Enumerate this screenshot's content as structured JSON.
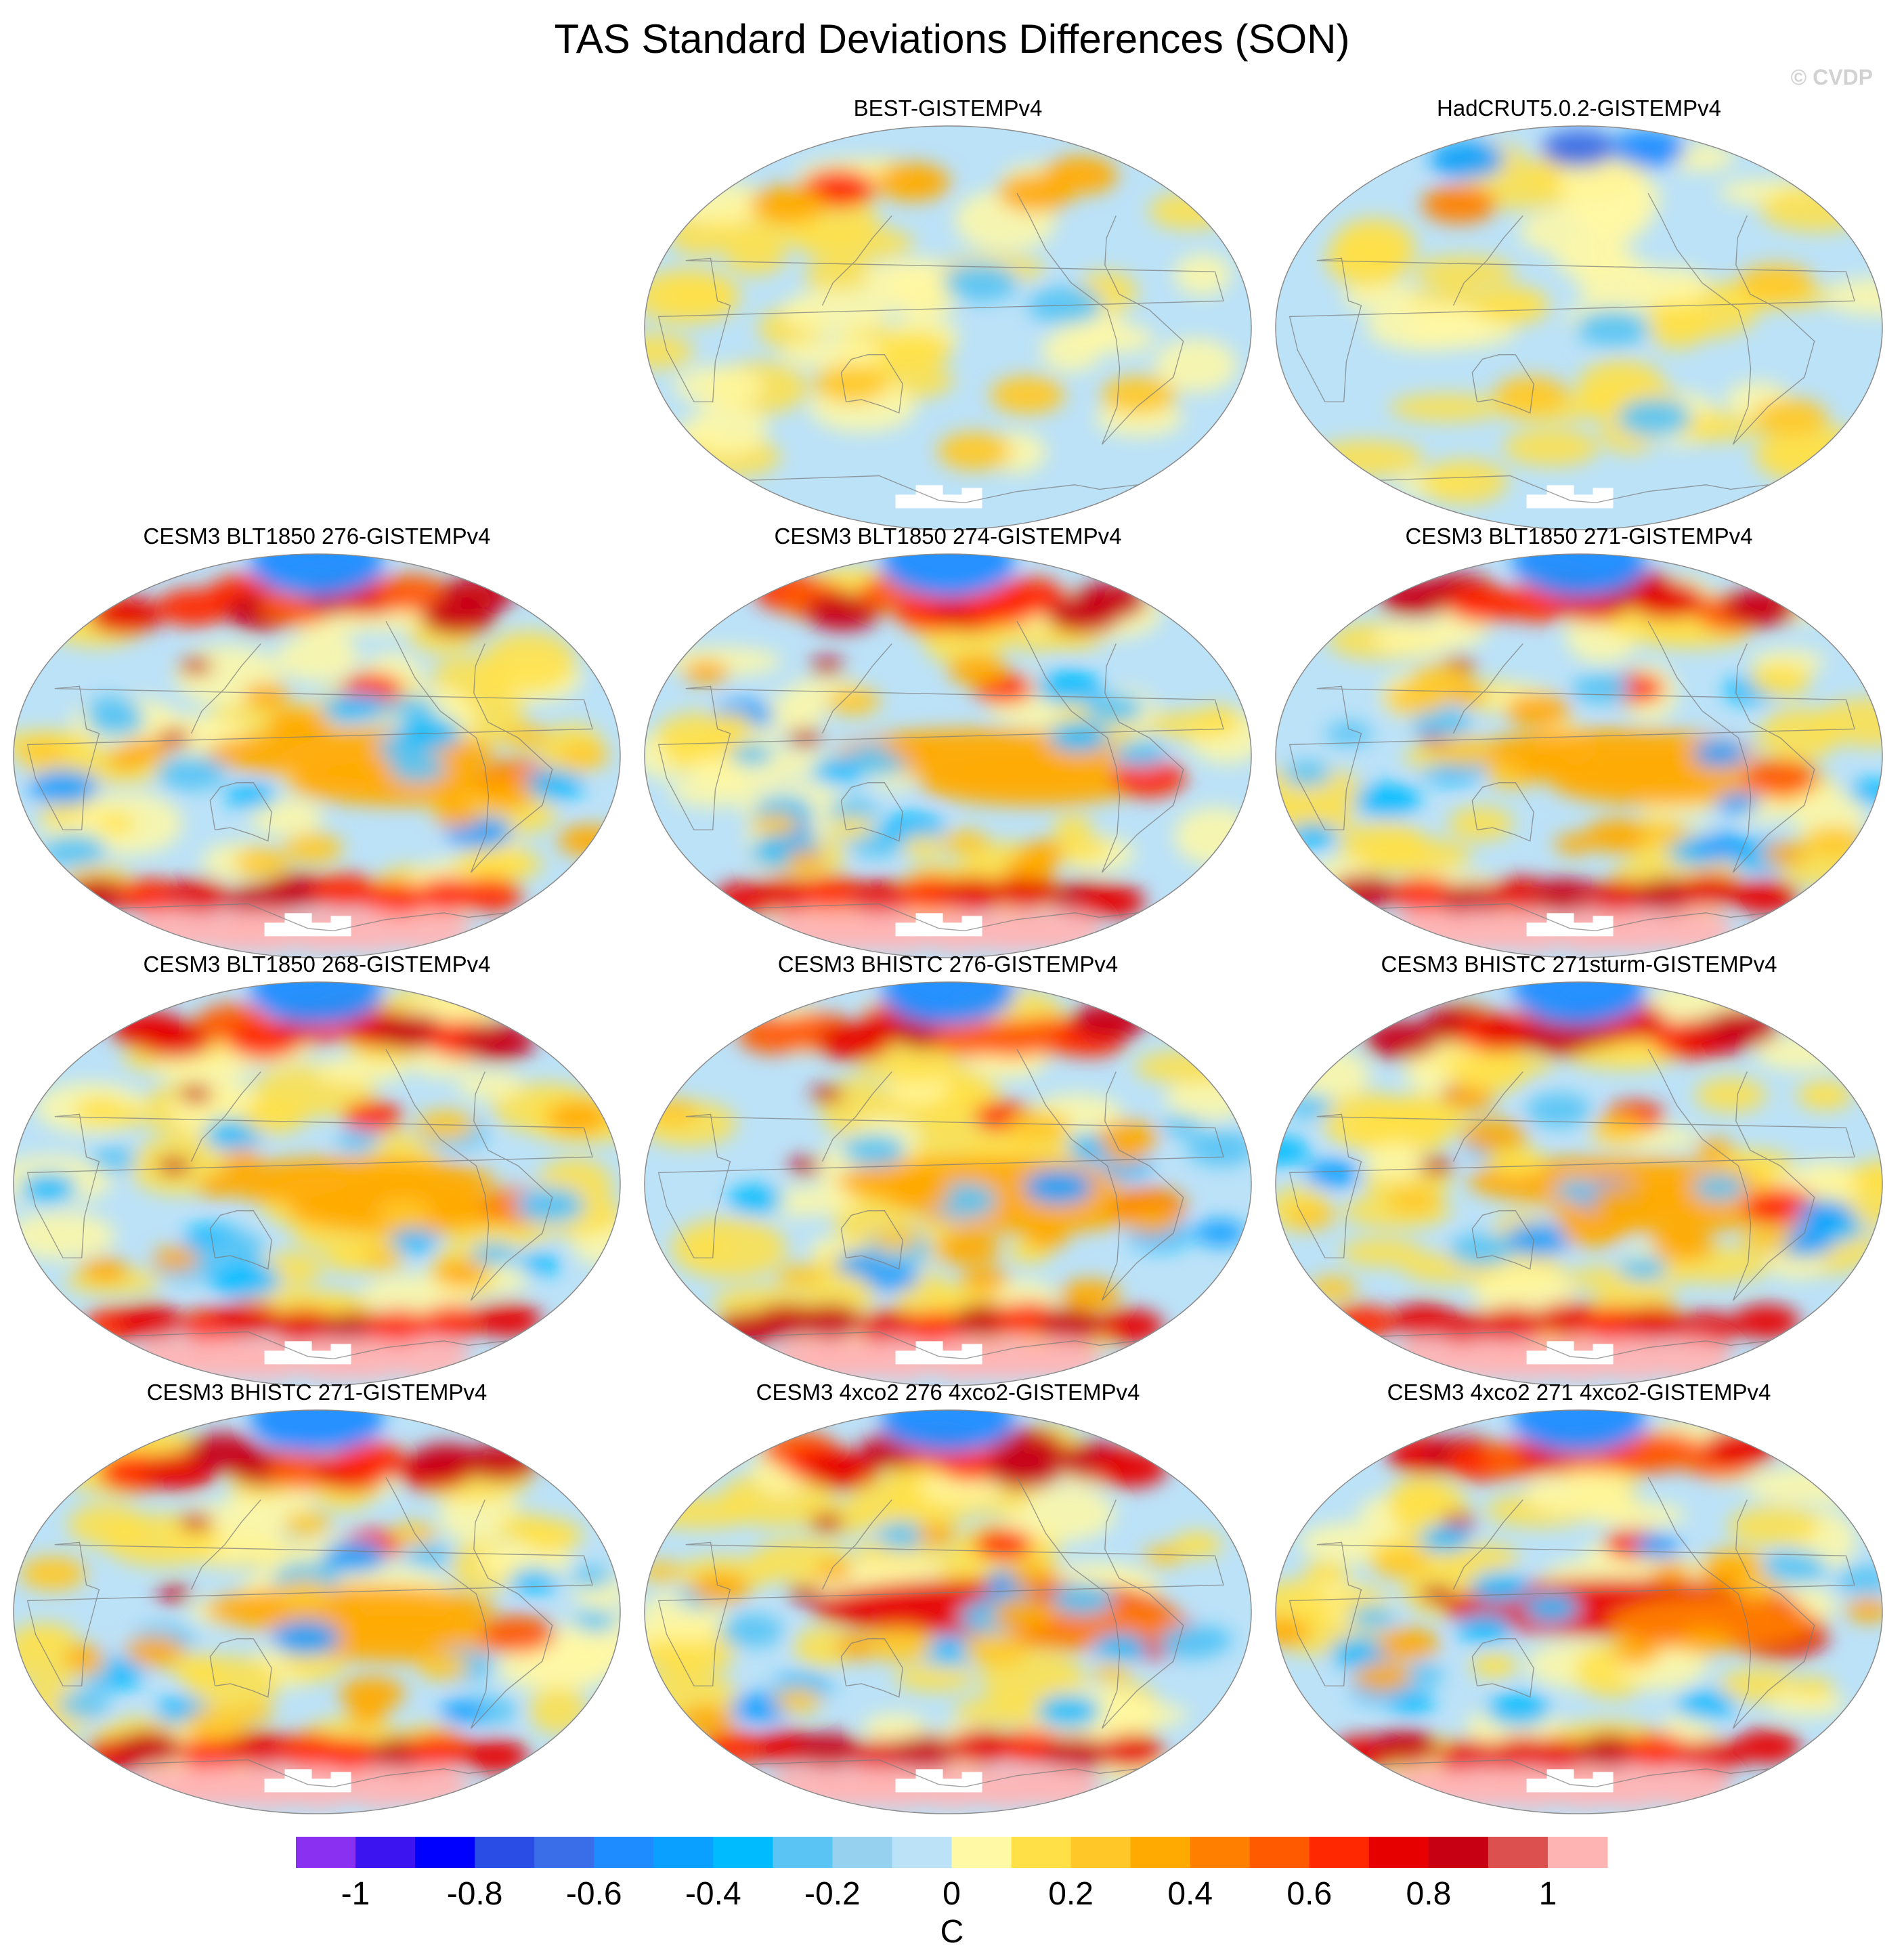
{
  "page": {
    "title": "TAS Standard Deviations Differences (SON)",
    "watermark": "© CVDP"
  },
  "chart_data": {
    "type": "heatmap",
    "title": "TAS Standard Deviations Differences (SON)",
    "projection": "global ellipse map, Pacific-centered",
    "panels": [
      {
        "id": "best",
        "title": "BEST-GISTEMPv4",
        "row": 0,
        "col": 1,
        "style": "obs",
        "blobs": [
          {
            "lon": 90,
            "lat": 62,
            "v": 0.6
          },
          {
            "lon": 60,
            "lat": 55,
            "v": 0.35
          },
          {
            "lon": 150,
            "lat": 65,
            "v": 0.3
          },
          {
            "lon": 250,
            "lat": 60,
            "v": 0.35
          },
          {
            "lon": 300,
            "lat": 68,
            "v": 0.3
          },
          {
            "lon": 200,
            "lat": 20,
            "v": -0.3
          },
          {
            "lon": 160,
            "lat": -10,
            "v": 0.15
          },
          {
            "lon": 230,
            "lat": -30,
            "v": 0.2
          },
          {
            "lon": 300,
            "lat": -30,
            "v": 0.25
          },
          {
            "lon": 120,
            "lat": -25,
            "v": 0.2
          },
          {
            "lon": 200,
            "lat": -55,
            "v": 0.2
          },
          {
            "lon": 250,
            "lat": 10,
            "v": -0.3
          }
        ]
      },
      {
        "id": "hadcrut",
        "title": "HadCRUT5.0.2-GISTEMPv4",
        "row": 0,
        "col": 2,
        "style": "obs",
        "blobs": [
          {
            "lon": 90,
            "lat": 55,
            "v": 0.4
          },
          {
            "lon": 180,
            "lat": 80,
            "v": -0.7
          },
          {
            "lon": 270,
            "lat": 80,
            "v": -0.6
          },
          {
            "lon": 60,
            "lat": 75,
            "v": -0.5
          },
          {
            "lon": 200,
            "lat": 0,
            "v": -0.25
          },
          {
            "lon": 230,
            "lat": -40,
            "v": -0.3
          },
          {
            "lon": 300,
            "lat": 20,
            "v": 0.25
          },
          {
            "lon": 140,
            "lat": 10,
            "v": 0.15
          },
          {
            "lon": 150,
            "lat": -30,
            "v": 0.2
          },
          {
            "lon": 320,
            "lat": -40,
            "v": 0.2
          }
        ]
      },
      {
        "id": "blt276",
        "title": "CESM3 BLT1850 276-GISTEMPv4",
        "row": 1,
        "col": 0,
        "style": "model",
        "seed": 1
      },
      {
        "id": "blt274",
        "title": "CESM3 BLT1850 274-GISTEMPv4",
        "row": 1,
        "col": 1,
        "style": "model",
        "seed": 2
      },
      {
        "id": "blt271",
        "title": "CESM3 BLT1850 271-GISTEMPv4",
        "row": 1,
        "col": 2,
        "style": "model",
        "seed": 3
      },
      {
        "id": "blt268",
        "title": "CESM3 BLT1850 268-GISTEMPv4",
        "row": 2,
        "col": 0,
        "style": "model",
        "seed": 4
      },
      {
        "id": "bh276",
        "title": "CESM3 BHISTC 276-GISTEMPv4",
        "row": 2,
        "col": 1,
        "style": "model",
        "seed": 5
      },
      {
        "id": "bh271s",
        "title": "CESM3 BHISTC 271sturm-GISTEMPv4",
        "row": 2,
        "col": 2,
        "style": "model",
        "seed": 6
      },
      {
        "id": "bh271",
        "title": "CESM3 BHISTC 271-GISTEMPv4",
        "row": 3,
        "col": 0,
        "style": "model",
        "seed": 7
      },
      {
        "id": "co2276",
        "title": "CESM3 4xco2 276 4xco2-GISTEMPv4",
        "row": 3,
        "col": 1,
        "style": "co2",
        "seed": 8
      },
      {
        "id": "co2271",
        "title": "CESM3 4xco2 271 4xco2-GISTEMPv4",
        "row": 3,
        "col": 2,
        "style": "co2",
        "seed": 9
      }
    ],
    "colorbar": {
      "unit": "C",
      "levels": [
        -1.1,
        -1.0,
        -0.9,
        -0.8,
        -0.7,
        -0.6,
        -0.5,
        -0.4,
        -0.3,
        -0.2,
        -0.1,
        0.0,
        0.1,
        0.2,
        0.3,
        0.4,
        0.5,
        0.6,
        0.7,
        0.8,
        0.9,
        1.0,
        1.1
      ],
      "colors": [
        "#8a30f0",
        "#3c14f0",
        "#0000ff",
        "#2a4de6",
        "#3a6ee8",
        "#1e8cff",
        "#0aa0ff",
        "#00bcff",
        "#5ac4f4",
        "#96d2f0",
        "#bce2f8",
        "#fff8a4",
        "#ffe046",
        "#ffc828",
        "#ffaa00",
        "#ff8000",
        "#ff5a00",
        "#ff2800",
        "#e60000",
        "#c80014",
        "#dc5050",
        "#ffb4b4"
      ],
      "tick_labels": [
        "-1",
        "-0.8",
        "-0.6",
        "-0.4",
        "-0.2",
        "0",
        "0.2",
        "0.4",
        "0.6",
        "0.8",
        "1"
      ],
      "tick_values": [
        -1.0,
        -0.8,
        -0.6,
        -0.4,
        -0.2,
        0.0,
        0.2,
        0.4,
        0.6,
        0.8,
        1.0
      ]
    }
  }
}
